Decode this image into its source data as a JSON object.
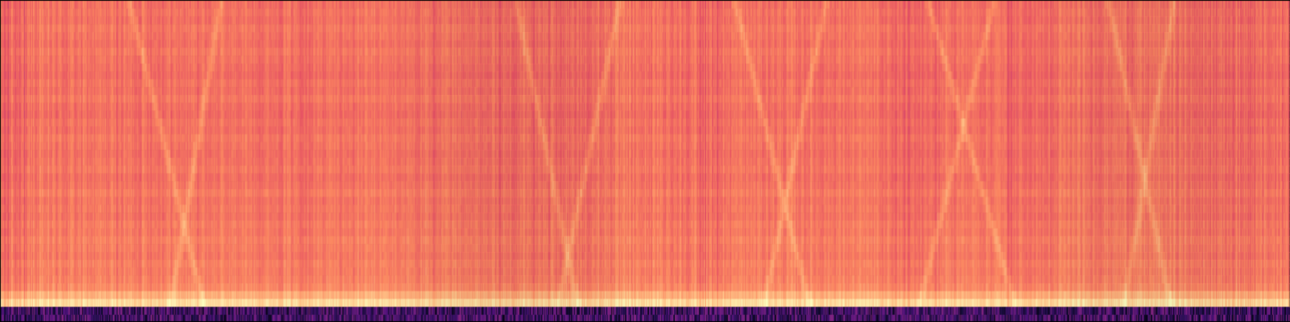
{
  "chart_data": {
    "type": "heatmap",
    "title": "",
    "xlabel": "",
    "ylabel": "",
    "colormap": "magma",
    "grid": false,
    "legend": "none",
    "axes_visible": false,
    "frame_color": "#000000",
    "band_count": 40,
    "time_bins": 1600,
    "value_range": [
      0,
      1
    ],
    "band_mean_levels_top_to_bottom": [
      0.7,
      0.71,
      0.7,
      0.72,
      0.71,
      0.7,
      0.72,
      0.71,
      0.7,
      0.69,
      0.71,
      0.7,
      0.72,
      0.7,
      0.69,
      0.71,
      0.7,
      0.72,
      0.71,
      0.7,
      0.71,
      0.72,
      0.7,
      0.71,
      0.73,
      0.71,
      0.72,
      0.71,
      0.73,
      0.72,
      0.74,
      0.73,
      0.72,
      0.74,
      0.73,
      0.74,
      0.76,
      0.84,
      0.93,
      0.22
    ],
    "column_variation": 0.05,
    "darker_segments": [
      {
        "from": 0.0,
        "to": 0.02,
        "delta": -0.06
      },
      {
        "from": 0.33,
        "to": 0.46,
        "delta": -0.03
      },
      {
        "from": 0.54,
        "to": 0.56,
        "delta": -0.05
      },
      {
        "from": 0.68,
        "to": 0.73,
        "delta": -0.04
      },
      {
        "from": 0.78,
        "to": 0.82,
        "delta": -0.04
      },
      {
        "from": 0.92,
        "to": 1.0,
        "delta": -0.03
      }
    ],
    "bright_streaks": [
      {
        "x": 0.1,
        "slope": 0.06
      },
      {
        "x": 0.17,
        "slope": -0.04
      },
      {
        "x": 0.4,
        "slope": 0.05
      },
      {
        "x": 0.48,
        "slope": -0.05
      },
      {
        "x": 0.57,
        "slope": 0.06
      },
      {
        "x": 0.64,
        "slope": -0.05
      },
      {
        "x": 0.72,
        "slope": 0.07
      },
      {
        "x": 0.77,
        "slope": -0.06
      },
      {
        "x": 0.86,
        "slope": 0.05
      },
      {
        "x": 0.91,
        "slope": -0.04
      }
    ]
  }
}
